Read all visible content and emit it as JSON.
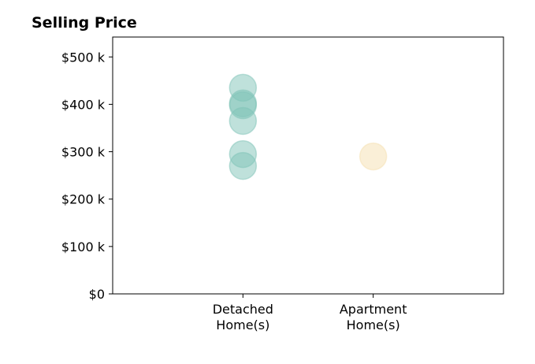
{
  "chart_data": {
    "type": "scatter",
    "title": "Selling Price",
    "xlabel": "",
    "ylabel": "",
    "categories": [
      [
        "Detached",
        "Home(s)"
      ],
      [
        "Apartment",
        "Home(s)"
      ]
    ],
    "y_ticks": [
      {
        "value": 0,
        "label": "$0"
      },
      {
        "value": 100000,
        "label": "$100 k"
      },
      {
        "value": 200000,
        "label": "$200 k"
      },
      {
        "value": 300000,
        "label": "$300 k"
      },
      {
        "value": 400000,
        "label": "$400 k"
      },
      {
        "value": 500000,
        "label": "$500 k"
      }
    ],
    "ylim": [
      0,
      542000
    ],
    "xlim": [
      -1,
      2
    ],
    "grid": false,
    "points": [
      {
        "category": 0,
        "value": 435000,
        "color": "#7fc4b8"
      },
      {
        "category": 0,
        "value": 402000,
        "color": "#7fc4b8"
      },
      {
        "category": 0,
        "value": 398000,
        "color": "#7fc4b8"
      },
      {
        "category": 0,
        "value": 365000,
        "color": "#7fc4b8"
      },
      {
        "category": 0,
        "value": 295000,
        "color": "#7fc4b8"
      },
      {
        "category": 0,
        "value": 270000,
        "color": "#7fc4b8"
      },
      {
        "category": 1,
        "value": 290000,
        "color": "#f5dfb0"
      }
    ],
    "marker_opacity": 0.5
  }
}
